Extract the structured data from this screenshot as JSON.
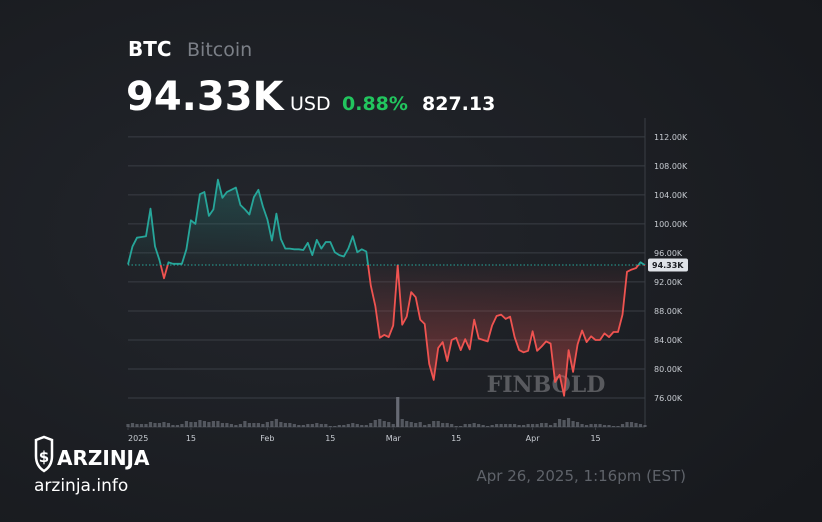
{
  "chart_data": {
    "type": "line",
    "symbol": "BTC",
    "name": "Bitcoin",
    "price": "94.33K",
    "currency": "USD",
    "change_pct": "0.88%",
    "change_abs": "827.13",
    "watermark": "FINBOLD",
    "brand": "ARZINJA",
    "brand_url": "arzinja.info",
    "timestamp": "Apr 26, 2025, 1:16pm (EST)",
    "x": [
      0,
      1,
      2,
      3,
      4,
      5,
      6,
      7,
      8,
      9,
      10,
      11,
      12,
      13,
      14,
      15,
      16,
      17,
      18,
      19,
      20,
      21,
      22,
      23,
      24,
      25,
      26,
      27,
      28,
      29,
      30,
      31,
      32,
      33,
      34,
      35,
      36,
      37,
      38,
      39,
      40,
      41,
      42,
      43,
      44,
      45,
      46,
      47,
      48,
      49,
      50,
      51,
      52,
      53,
      54,
      55,
      56,
      57,
      58,
      59,
      60,
      61,
      62,
      63,
      64,
      65,
      66,
      67,
      68,
      69,
      70,
      71,
      72,
      73,
      74,
      75,
      76,
      77,
      78,
      79,
      80,
      81,
      82,
      83,
      84,
      85,
      86,
      87,
      88,
      89,
      90,
      91,
      92,
      93,
      94,
      95,
      96,
      97,
      98,
      99,
      100,
      101,
      102,
      103,
      104,
      105,
      106,
      107,
      108,
      109,
      110,
      111,
      112,
      113,
      114,
      115
    ],
    "series": [
      {
        "name": "BTC",
        "color_up": "#26a69a",
        "color_down": "#ef5350",
        "values": [
          94.4,
          96.9,
          98.1,
          98.2,
          98.3,
          102.1,
          96.9,
          95.0,
          92.5,
          94.7,
          94.5,
          94.5,
          94.5,
          96.5,
          100.5,
          100.0,
          104.1,
          104.4,
          101.1,
          102.0,
          106.1,
          103.6,
          104.4,
          104.7,
          105.0,
          102.6,
          102.0,
          101.3,
          103.7,
          104.7,
          102.4,
          100.6,
          97.7,
          101.4,
          97.9,
          96.6,
          96.6,
          96.5,
          96.5,
          96.4,
          97.4,
          95.7,
          97.8,
          96.6,
          97.5,
          97.5,
          96.1,
          95.7,
          95.5,
          96.6,
          98.3,
          96.1,
          96.5,
          96.2,
          91.5,
          88.7,
          84.3,
          84.7,
          84.4,
          86.0,
          94.3,
          86.1,
          87.2,
          90.6,
          89.9,
          86.8,
          86.2,
          80.7,
          78.5,
          82.9,
          83.7,
          81.1,
          84.0,
          84.3,
          82.6,
          84.1,
          82.7,
          86.8,
          84.2,
          84.0,
          83.8,
          86.0,
          87.3,
          87.5,
          86.9,
          87.2,
          84.4,
          82.6,
          82.3,
          82.5,
          85.2,
          82.5,
          83.1,
          83.8,
          83.5,
          78.2,
          79.2,
          76.3,
          82.6,
          79.6,
          83.4,
          85.3,
          83.7,
          84.5,
          84.0,
          84.0,
          84.9,
          84.4,
          85.1,
          85.1,
          87.5,
          93.4,
          93.7,
          93.9,
          94.7,
          94.3
        ]
      }
    ],
    "volume": [
      3,
      4,
      3,
      3,
      3,
      5,
      4,
      4,
      5,
      4,
      2,
      2,
      3,
      6,
      5,
      5,
      7,
      6,
      5,
      6,
      6,
      4,
      4,
      3,
      2,
      3,
      6,
      4,
      4,
      4,
      3,
      5,
      6,
      8,
      5,
      4,
      4,
      3,
      2,
      2,
      3,
      3,
      4,
      3,
      3,
      1,
      1,
      2,
      2,
      3,
      4,
      3,
      2,
      2,
      4,
      7,
      8,
      6,
      5,
      3,
      30,
      8,
      6,
      5,
      4,
      5,
      2,
      3,
      6,
      6,
      4,
      4,
      3,
      1,
      1,
      3,
      3,
      4,
      3,
      2,
      1,
      2,
      3,
      3,
      3,
      3,
      3,
      2,
      2,
      3,
      3,
      3,
      4,
      4,
      2,
      4,
      8,
      7,
      9,
      6,
      5,
      3,
      2,
      3,
      3,
      3,
      2,
      2,
      1,
      1,
      3,
      5,
      5,
      4,
      3,
      2
    ],
    "volume_color": "#6b6f78",
    "xlim": [
      0,
      115
    ],
    "xticks": [
      {
        "value": 0,
        "label": "2025"
      },
      {
        "value": 14,
        "label": "15"
      },
      {
        "value": 31,
        "label": "Feb"
      },
      {
        "value": 45,
        "label": "15"
      },
      {
        "value": 59,
        "label": "Mar"
      },
      {
        "value": 73,
        "label": "15"
      },
      {
        "value": 90,
        "label": "Apr"
      },
      {
        "value": 104,
        "label": "15"
      }
    ],
    "ylim": [
      72,
      114.6
    ],
    "yticks": [
      {
        "value": 76,
        "label": "76.00K"
      },
      {
        "value": 80,
        "label": "80.00K"
      },
      {
        "value": 84,
        "label": "84.00K"
      },
      {
        "value": 88,
        "label": "88.00K"
      },
      {
        "value": 92,
        "label": "92.00K"
      },
      {
        "value": 96,
        "label": "96.00K"
      },
      {
        "value": 100,
        "label": "100.00K"
      },
      {
        "value": 104,
        "label": "104.00K"
      },
      {
        "value": 108,
        "label": "108.00K"
      },
      {
        "value": 112,
        "label": "112.00K"
      }
    ],
    "price_marker": {
      "value": 94.33,
      "label": "94.33K"
    },
    "grid": true
  }
}
